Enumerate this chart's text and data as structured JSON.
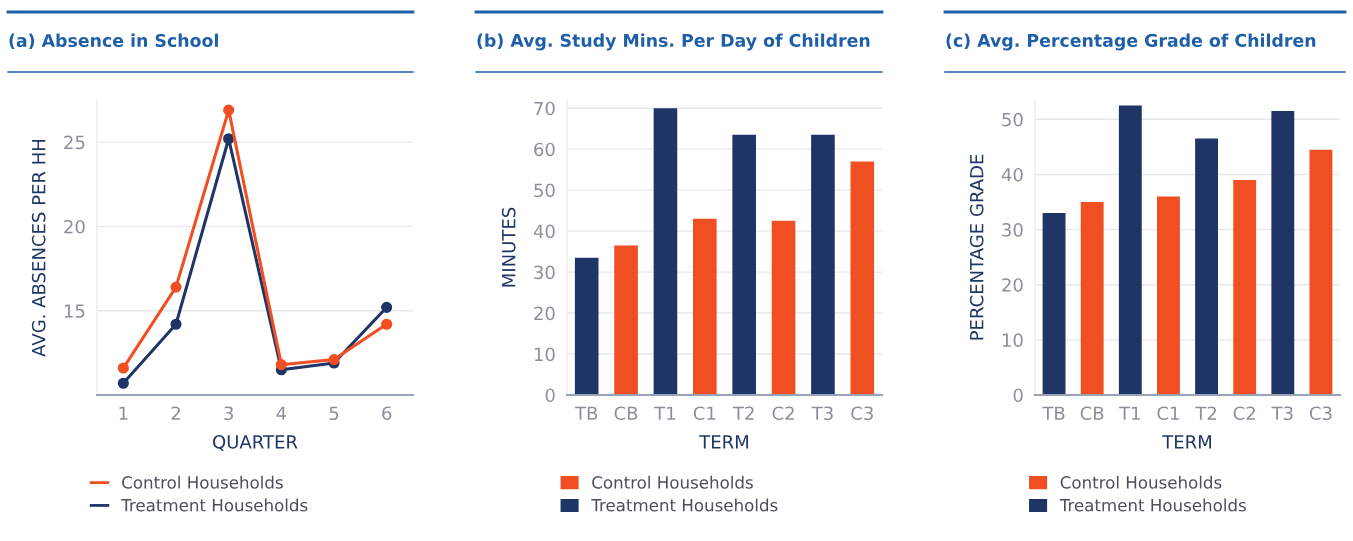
{
  "chart_data": [
    {
      "type": "line",
      "title": "(a) Absence in School",
      "xlabel": "QUARTER",
      "ylabel": "AVG. ABSENCES PER HH",
      "categories": [
        "1",
        "2",
        "3",
        "4",
        "5",
        "6"
      ],
      "ylim": [
        10,
        27.5
      ],
      "yticks": [
        15,
        20,
        25
      ],
      "grid": "y",
      "legend": "bottom",
      "marker": "circle",
      "line_style": "solid",
      "series": [
        {
          "name": "Control Households",
          "color": "#f04e23",
          "values": [
            11.6,
            16.4,
            26.9,
            11.8,
            12.1,
            14.2
          ]
        },
        {
          "name": "Treatment Households",
          "color": "#1f3566",
          "values": [
            10.7,
            14.2,
            25.2,
            11.5,
            11.9,
            15.2
          ]
        }
      ]
    },
    {
      "type": "bar",
      "title": "(b) Avg. Study Mins. Per Day of Children",
      "xlabel": "TERM",
      "ylabel": "MINUTES",
      "categories": [
        "TB",
        "CB",
        "T1",
        "C1",
        "T2",
        "C2",
        "T3",
        "C3"
      ],
      "ylim": [
        0,
        72
      ],
      "yticks": [
        0,
        10,
        20,
        30,
        40,
        50,
        60,
        70
      ],
      "grid": "y",
      "legend": "bottom",
      "series": [
        {
          "name": "Control Households",
          "color": "#f04e23",
          "values": [
            null,
            36.5,
            null,
            43,
            null,
            42.5,
            null,
            57
          ]
        },
        {
          "name": "Treatment Households",
          "color": "#1f3566",
          "values": [
            33.5,
            null,
            70,
            null,
            63.5,
            null,
            63.5,
            null
          ]
        }
      ]
    },
    {
      "type": "bar",
      "title": "(c) Avg. Percentage Grade of Children",
      "xlabel": "TERM",
      "ylabel": "PERCENTAGE GRADE",
      "categories": [
        "TB",
        "CB",
        "T1",
        "C1",
        "T2",
        "C2",
        "T3",
        "C3"
      ],
      "ylim": [
        0,
        53.5
      ],
      "yticks": [
        0,
        10,
        20,
        30,
        40,
        50
      ],
      "grid": "y",
      "legend": "bottom",
      "series": [
        {
          "name": "Control Households",
          "color": "#f04e23",
          "values": [
            null,
            35,
            null,
            36,
            null,
            39,
            null,
            44.5
          ]
        },
        {
          "name": "Treatment Households",
          "color": "#1f3566",
          "values": [
            33,
            null,
            52.5,
            null,
            46.5,
            null,
            51.5,
            null
          ]
        }
      ]
    }
  ]
}
